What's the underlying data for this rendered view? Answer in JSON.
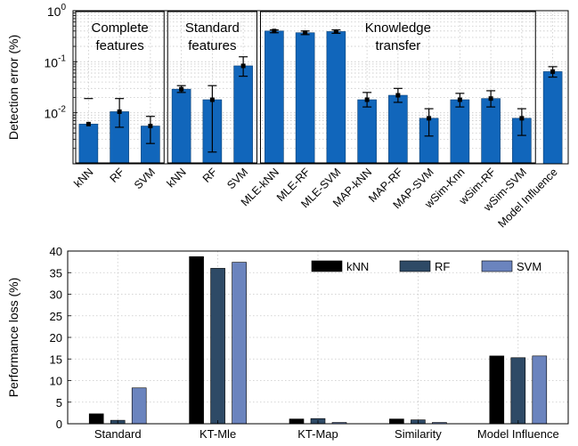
{
  "chart_data": [
    {
      "type": "bar",
      "ylabel": "Detection error (%)",
      "yscale": "log",
      "ylim": [
        0.001,
        1
      ],
      "yticks": [
        {
          "value": 1,
          "base": "10",
          "exp": "0"
        },
        {
          "value": 0.1,
          "base": "10",
          "exp": "-1"
        },
        {
          "value": 0.01,
          "base": "10",
          "exp": "-2"
        }
      ],
      "grid": true,
      "color": "#1166BB",
      "categories": [
        "kNN",
        "RF",
        "SVM",
        "kNN",
        "RF",
        "SVM",
        "MLE-kNN",
        "MLE-RF",
        "MLE-SVM",
        "MAP-kNN",
        "MAP-RF",
        "MAP-SVM",
        "wSim-Knn",
        "wSim-RF",
        "wSim-SVM",
        "Model Influence"
      ],
      "values": [
        0.006,
        0.0105,
        0.0055,
        0.029,
        0.018,
        0.083,
        0.4,
        0.37,
        0.39,
        0.018,
        0.022,
        0.0078,
        0.018,
        0.019,
        0.0078,
        0.064
      ],
      "error_low": [
        null,
        0.0052,
        0.0025,
        0.025,
        0.0017,
        0.052,
        0.37,
        0.34,
        0.36,
        0.013,
        0.016,
        0.0035,
        0.013,
        0.013,
        0.0036,
        0.05
      ],
      "error_high": [
        0.019,
        0.019,
        0.0085,
        0.034,
        0.034,
        0.125,
        0.42,
        0.4,
        0.42,
        0.025,
        0.03,
        0.012,
        0.024,
        0.027,
        0.012,
        0.08
      ],
      "groups": [
        {
          "label": [
            "Complete",
            "features"
          ],
          "start": 0,
          "end": 2
        },
        {
          "label": [
            "Standard",
            "features"
          ],
          "start": 3,
          "end": 5
        },
        {
          "label": [
            "Knowledge",
            "transfer"
          ],
          "start": 6,
          "end": 14
        }
      ]
    },
    {
      "type": "bar",
      "ylabel": "Performance loss (%)",
      "ylim": [
        0,
        40
      ],
      "yticks": [
        0,
        5,
        10,
        15,
        20,
        25,
        30,
        35,
        40
      ],
      "grid": true,
      "legend_position": "top-right",
      "categories": [
        "Standard",
        "KT-Mle",
        "KT-Map",
        "Similarity",
        "Model Influence"
      ],
      "series": [
        {
          "name": "kNN",
          "color": "#000000",
          "values": [
            2.3,
            38.7,
            1.1,
            1.1,
            15.7
          ]
        },
        {
          "name": "RF",
          "color": "#2E4A66",
          "values": [
            0.8,
            36.0,
            1.2,
            0.9,
            15.3
          ]
        },
        {
          "name": "SVM",
          "color": "#6B84BE",
          "values": [
            8.3,
            37.4,
            0.3,
            0.3,
            15.7
          ]
        }
      ]
    }
  ]
}
